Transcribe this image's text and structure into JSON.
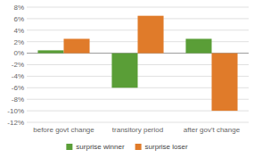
{
  "chart_data": {
    "type": "bar",
    "categories": [
      "before govt change",
      "transitory period",
      "after gov't change"
    ],
    "series": [
      {
        "name": "surprise winner",
        "color": "#5a9e37",
        "values": [
          0.5,
          -6.0,
          2.5
        ]
      },
      {
        "name": "surprise loser",
        "color": "#e07b2a",
        "values": [
          2.5,
          6.5,
          -10.0
        ]
      }
    ],
    "ylim": [
      -12,
      8
    ],
    "yticks": [
      {
        "value": -12,
        "label": "-12%"
      },
      {
        "value": -10,
        "label": "-10%"
      },
      {
        "value": -8,
        "label": "-8%"
      },
      {
        "value": -6,
        "label": "-6%"
      },
      {
        "value": -4,
        "label": "-4%"
      },
      {
        "value": -2,
        "label": "-2%"
      },
      {
        "value": 0,
        "label": "0%"
      },
      {
        "value": 2,
        "label": "2%"
      },
      {
        "value": 4,
        "label": "4%"
      },
      {
        "value": 6,
        "label": "6%"
      },
      {
        "value": 8,
        "label": "8%"
      }
    ],
    "grid": true,
    "legend": "bottom"
  }
}
